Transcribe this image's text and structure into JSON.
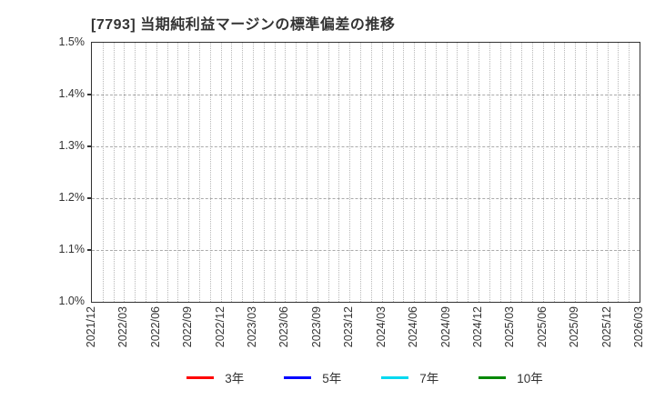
{
  "title": "[7793]  当期純利益マージンの標準偏差の推移",
  "chart_data": {
    "type": "line",
    "title": "[7793]  当期純利益マージンの標準偏差の推移",
    "xlabel": "",
    "ylabel": "",
    "y_unit": "%",
    "ylim": [
      1.0,
      1.5
    ],
    "y_tick_labels": [
      "1.5%",
      "1.4%",
      "1.3%",
      "1.2%",
      "1.1%",
      "1.0%"
    ],
    "x_tick_labels": [
      "2021/12",
      "2022/03",
      "2022/06",
      "2022/09",
      "2022/12",
      "2023/03",
      "2023/06",
      "2023/09",
      "2023/12",
      "2024/03",
      "2024/06",
      "2024/09",
      "2024/12",
      "2025/03",
      "2025/06",
      "2025/09",
      "2025/12",
      "2026/03"
    ],
    "x_label_interval_months": 3,
    "x_total_months": 51,
    "grid": true,
    "grid_vertical_style": "dotted-monthly",
    "grid_horizontal_style": "dashed",
    "legend_position": "bottom",
    "series": [
      {
        "name": "3年",
        "color": "#ff0000",
        "values": []
      },
      {
        "name": "5年",
        "color": "#0000ff",
        "values": []
      },
      {
        "name": "7年",
        "color": "#00d9f0",
        "values": []
      },
      {
        "name": "10年",
        "color": "#008800",
        "values": []
      }
    ],
    "plot_is_empty": true
  }
}
